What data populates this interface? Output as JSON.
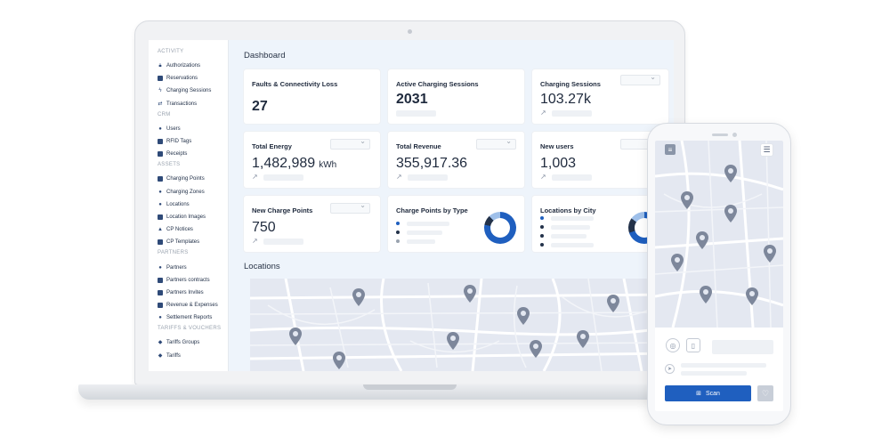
{
  "sidebar": {
    "sections": [
      {
        "title": "ACTIVITY",
        "items": [
          {
            "label": "Authorizations",
            "icon": "lock-icon"
          },
          {
            "label": "Reservations",
            "icon": "reservation-icon"
          },
          {
            "label": "Charging Sessions",
            "icon": "bolt-icon"
          },
          {
            "label": "Transactions",
            "icon": "exchange-icon"
          }
        ]
      },
      {
        "title": "CRM",
        "items": [
          {
            "label": "Users",
            "icon": "users-icon"
          },
          {
            "label": "RFID Tags",
            "icon": "card-icon"
          },
          {
            "label": "Receipts",
            "icon": "receipt-icon"
          }
        ]
      },
      {
        "title": "ASSETS",
        "items": [
          {
            "label": "Charging Points",
            "icon": "charger-icon"
          },
          {
            "label": "Charging Zones",
            "icon": "zone-pin-icon"
          },
          {
            "label": "Locations",
            "icon": "location-icon"
          },
          {
            "label": "Location Images",
            "icon": "image-icon"
          },
          {
            "label": "CP Notices",
            "icon": "bell-icon"
          },
          {
            "label": "CP Templates",
            "icon": "template-icon"
          }
        ]
      },
      {
        "title": "PARTNERS",
        "items": [
          {
            "label": "Partners",
            "icon": "user-icon"
          },
          {
            "label": "Partners contracts",
            "icon": "document-icon"
          },
          {
            "label": "Partners Invites",
            "icon": "envelope-icon"
          },
          {
            "label": "Revenue & Expenses",
            "icon": "cash-icon"
          },
          {
            "label": "Settlement Reports",
            "icon": "pie-icon"
          }
        ]
      },
      {
        "title": "TARIFFS & VOUCHERS",
        "items": [
          {
            "label": "Tariffs Groups",
            "icon": "layers-icon"
          },
          {
            "label": "Tariffs",
            "icon": "tag-icon"
          }
        ]
      }
    ]
  },
  "dashboard": {
    "title": "Dashboard",
    "cards": {
      "faults": {
        "title": "Faults & Connectivity Loss",
        "value": "27"
      },
      "active_sessions": {
        "title": "Active Charging Sessions",
        "value": "2031"
      },
      "charging_sessions": {
        "title": "Charging Sessions",
        "value": "103.27k"
      },
      "total_energy": {
        "title": "Total Energy",
        "value": "1,482,989",
        "unit": "kWh"
      },
      "total_revenue": {
        "title": "Total Revenue",
        "value": "355,917.36"
      },
      "new_users": {
        "title": "New users",
        "value": "1,003"
      },
      "new_charge_points": {
        "title": "New Charge Points",
        "value": "750"
      },
      "cp_by_type": {
        "title": "Charge Points by Type"
      },
      "locations_by_city": {
        "title": "Locations by City"
      }
    },
    "locations_title": "Locations"
  },
  "phone": {
    "scan_label": "Scan"
  },
  "colors": {
    "primary": "#1f5fbf",
    "navy": "#23324a",
    "donut_light": "#9fc0ea",
    "map_bg": "#e4e8f1",
    "pin": "#7d879b"
  }
}
